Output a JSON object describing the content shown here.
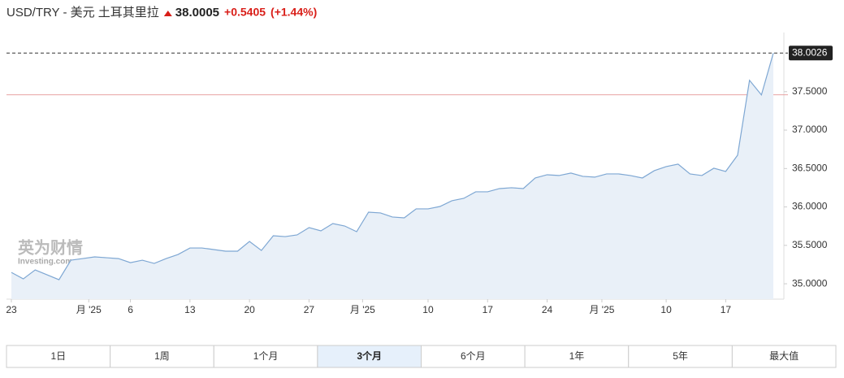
{
  "chart_data": {
    "type": "line",
    "title": "USD/TRY - 美元 土耳其里拉",
    "price": "38.0005",
    "change": "+0.5405",
    "change_percent": "(+1.44%)",
    "watermark": [
      "英为财情",
      "Investing.com"
    ],
    "series": [
      {
        "name": "USD/TRY",
        "color": "#7ea7d3",
        "values": [
          35.148,
          35.064,
          35.18,
          35.117,
          35.053,
          35.307,
          35.328,
          35.35,
          35.339,
          35.328,
          35.275,
          35.307,
          35.265,
          35.328,
          35.381,
          35.466,
          35.466,
          35.445,
          35.424,
          35.424,
          35.551,
          35.434,
          35.625,
          35.614,
          35.636,
          35.731,
          35.689,
          35.784,
          35.752,
          35.678,
          35.932,
          35.922,
          35.869,
          35.858,
          35.975,
          35.975,
          36.006,
          36.081,
          36.112,
          36.197,
          36.197,
          36.239,
          36.25,
          36.239,
          36.377,
          36.419,
          36.409,
          36.441,
          36.398,
          36.388,
          36.43,
          36.43,
          36.409,
          36.377,
          36.472,
          36.525,
          36.557,
          36.43,
          36.409,
          36.504,
          36.462,
          36.674,
          37.648,
          37.458,
          38.0026
        ]
      }
    ],
    "last_value": 38.0026,
    "previous_close": 37.46,
    "xlim": [
      0,
      64
    ],
    "xticks": [
      {
        "value": 0,
        "label": "23"
      },
      {
        "value": 6.5,
        "label": "月 '25"
      },
      {
        "value": 10,
        "label": "6"
      },
      {
        "value": 15,
        "label": "13"
      },
      {
        "value": 20,
        "label": "20"
      },
      {
        "value": 25,
        "label": "27"
      },
      {
        "value": 29.5,
        "label": "月 '25"
      },
      {
        "value": 35,
        "label": "10"
      },
      {
        "value": 40,
        "label": "17"
      },
      {
        "value": 45,
        "label": "24"
      },
      {
        "value": 49.6,
        "label": "月 '25"
      },
      {
        "value": 55,
        "label": "10"
      },
      {
        "value": 60,
        "label": "17"
      }
    ],
    "ylim": [
      34.8,
      38.27
    ],
    "yticks": [
      {
        "value": 35,
        "label": "35.0000"
      },
      {
        "value": 35.5,
        "label": "35.5000"
      },
      {
        "value": 36,
        "label": "36.0000"
      },
      {
        "value": 36.5,
        "label": "36.5000"
      },
      {
        "value": 37,
        "label": "37.0000"
      },
      {
        "value": 37.5,
        "label": "37.5000"
      }
    ],
    "ranges": [
      "1日",
      "1周",
      "1个月",
      "3个月",
      "6个月",
      "1年",
      "5年",
      "最大值"
    ],
    "selected_range": 3
  }
}
